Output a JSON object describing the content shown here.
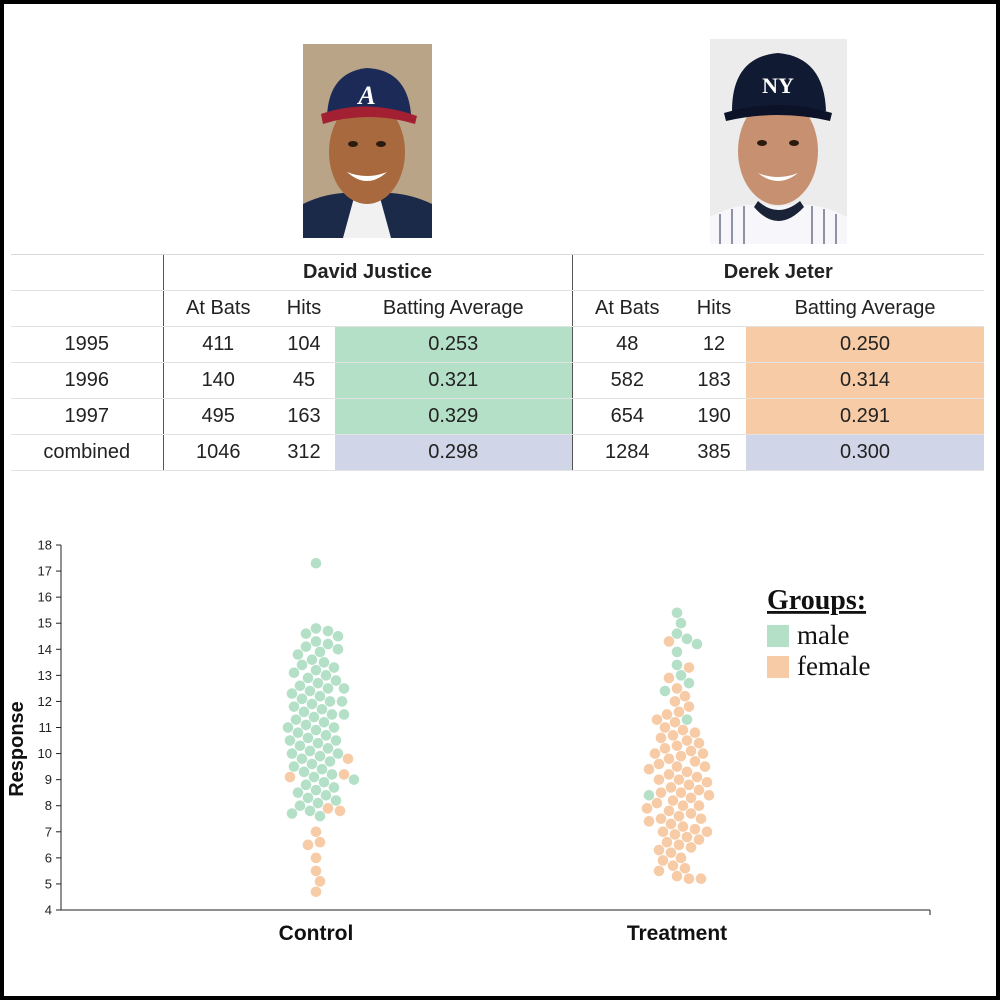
{
  "players": [
    {
      "name": "David Justice",
      "photo_icon": "braves-player-photo"
    },
    {
      "name": "Derek Jeter",
      "photo_icon": "yankees-player-photo"
    }
  ],
  "table": {
    "subheaders": [
      "At Bats",
      "Hits",
      "Batting Average"
    ],
    "rows": [
      {
        "label": "1995",
        "justice": {
          "at_bats": "411",
          "hits": "104",
          "avg": "0.253"
        },
        "jeter": {
          "at_bats": "48",
          "hits": "12",
          "avg": "0.250"
        }
      },
      {
        "label": "1996",
        "justice": {
          "at_bats": "140",
          "hits": "45",
          "avg": "0.321"
        },
        "jeter": {
          "at_bats": "582",
          "hits": "183",
          "avg": "0.314"
        }
      },
      {
        "label": "1997",
        "justice": {
          "at_bats": "495",
          "hits": "163",
          "avg": "0.329"
        },
        "jeter": {
          "at_bats": "654",
          "hits": "190",
          "avg": "0.291"
        }
      },
      {
        "label": "combined",
        "justice": {
          "at_bats": "1046",
          "hits": "312",
          "avg": "0.298"
        },
        "jeter": {
          "at_bats": "1284",
          "hits": "385",
          "avg": "0.300"
        }
      }
    ],
    "colors": {
      "justice_avg": "#b5e0c8",
      "jeter_avg": "#f6cba6",
      "combined_avg": "#d0d5e8"
    }
  },
  "chart_data": {
    "type": "scatter",
    "subtype": "beeswarm",
    "ylabel": "Response",
    "ylim": [
      4,
      18
    ],
    "yticks": [
      4,
      5,
      6,
      7,
      8,
      9,
      10,
      11,
      12,
      13,
      14,
      15,
      16,
      17,
      18
    ],
    "categories": [
      "Control",
      "Treatment"
    ],
    "legend": {
      "title": "Groups:",
      "placement": "top-right",
      "entries": [
        {
          "name": "male",
          "color": "#b5e0c8"
        },
        {
          "name": "female",
          "color": "#f6cba6"
        }
      ]
    },
    "series": [
      {
        "name": "male",
        "color": "#b5e0c8",
        "points": [
          {
            "group": "Control",
            "values": [
              17.3,
              14.8,
              14.7,
              14.6,
              14.5,
              14.3,
              14.2,
              14.1,
              14.0,
              13.9,
              13.8,
              13.6,
              13.5,
              13.4,
              13.3,
              13.2,
              13.1,
              13.0,
              12.9,
              12.8,
              12.7,
              12.6,
              12.5,
              12.5,
              12.4,
              12.3,
              12.2,
              12.1,
              12.0,
              12.0,
              11.9,
              11.8,
              11.7,
              11.6,
              11.5,
              11.5,
              11.4,
              11.3,
              11.2,
              11.1,
              11.0,
              11.0,
              10.9,
              10.8,
              10.7,
              10.6,
              10.5,
              10.5,
              10.4,
              10.3,
              10.2,
              10.1,
              10.0,
              10.0,
              9.9,
              9.8,
              9.7,
              9.6,
              9.5,
              9.4,
              9.3,
              9.2,
              9.1,
              9.0,
              8.9,
              8.8,
              8.7,
              8.6,
              8.5,
              8.4,
              8.3,
              8.2,
              8.1,
              8.0,
              7.8,
              7.7,
              7.6
            ]
          },
          {
            "group": "Treatment",
            "values": [
              15.4,
              15.0,
              14.6,
              14.4,
              14.2,
              13.9,
              13.4,
              13.0,
              12.7,
              12.4,
              11.3,
              8.4
            ]
          }
        ]
      },
      {
        "name": "female",
        "color": "#f6cba6",
        "points": [
          {
            "group": "Control",
            "values": [
              9.8,
              9.2,
              9.1,
              7.9,
              7.8,
              7.0,
              6.6,
              6.5,
              6.0,
              5.5,
              5.1,
              4.7
            ]
          },
          {
            "group": "Treatment",
            "values": [
              14.3,
              13.3,
              12.9,
              12.5,
              12.2,
              12.0,
              11.8,
              11.6,
              11.5,
              11.3,
              11.2,
              11.0,
              10.9,
              10.8,
              10.7,
              10.6,
              10.5,
              10.4,
              10.3,
              10.2,
              10.1,
              10.0,
              10.0,
              9.9,
              9.8,
              9.7,
              9.6,
              9.5,
              9.5,
              9.4,
              9.3,
              9.2,
              9.1,
              9.0,
              9.0,
              8.9,
              8.8,
              8.7,
              8.6,
              8.5,
              8.5,
              8.4,
              8.3,
              8.2,
              8.1,
              8.0,
              8.0,
              7.9,
              7.8,
              7.7,
              7.6,
              7.5,
              7.5,
              7.4,
              7.3,
              7.2,
              7.1,
              7.0,
              7.0,
              6.9,
              6.8,
              6.7,
              6.6,
              6.5,
              6.4,
              6.3,
              6.2,
              6.0,
              5.9,
              5.7,
              5.6,
              5.5,
              5.3,
              5.2,
              5.2
            ]
          }
        ]
      }
    ]
  }
}
